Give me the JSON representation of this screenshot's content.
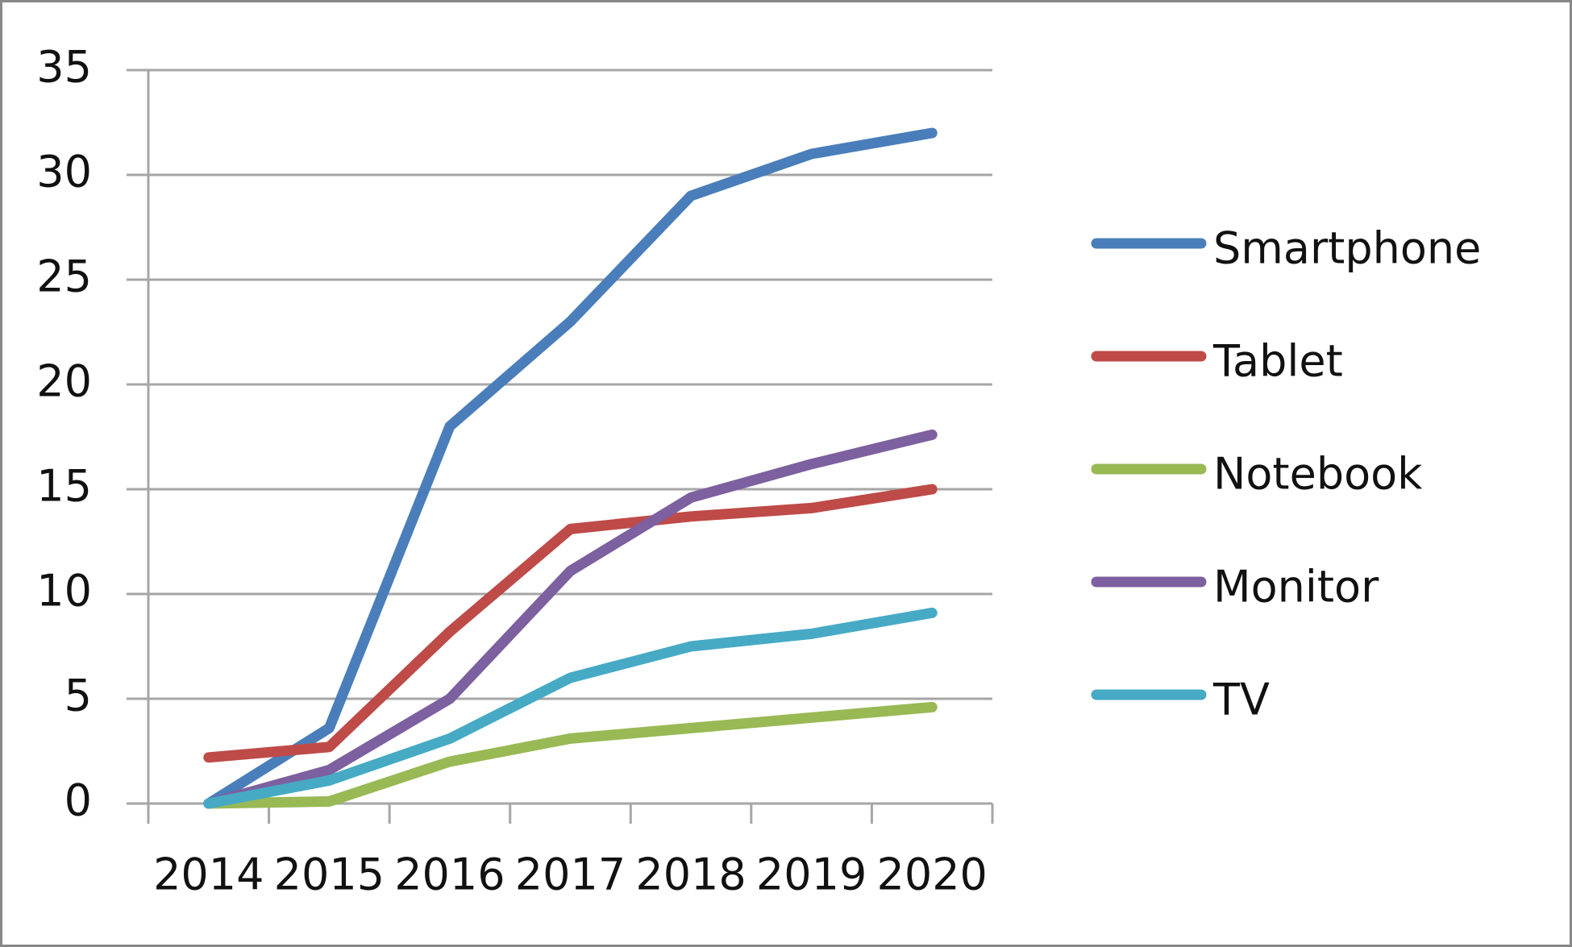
{
  "chart_data": {
    "type": "line",
    "categories": [
      "2014",
      "2015",
      "2016",
      "2017",
      "2018",
      "2019",
      "2020"
    ],
    "series": [
      {
        "name": "Smartphone",
        "color": "#4a7ebb",
        "values": [
          0,
          3.6,
          18,
          23,
          29,
          31,
          32
        ]
      },
      {
        "name": "Tablet",
        "color": "#be4b48",
        "values": [
          2.2,
          2.7,
          8.2,
          13.1,
          13.7,
          14.1,
          15
        ]
      },
      {
        "name": "Notebook",
        "color": "#98b954",
        "values": [
          0,
          0.1,
          2,
          3.1,
          3.6,
          4.1,
          4.6
        ]
      },
      {
        "name": "Monitor",
        "color": "#7d60a0",
        "values": [
          0,
          1.6,
          5,
          11.1,
          14.6,
          16.2,
          17.6
        ]
      },
      {
        "name": "TV",
        "color": "#46aac5",
        "values": [
          0,
          1.1,
          3.1,
          6,
          7.5,
          8.1,
          9.1
        ]
      }
    ],
    "ylim": [
      0,
      35
    ],
    "yticks": [
      0,
      5,
      10,
      15,
      20,
      25,
      30,
      35
    ],
    "grid": true,
    "legend": "right"
  }
}
